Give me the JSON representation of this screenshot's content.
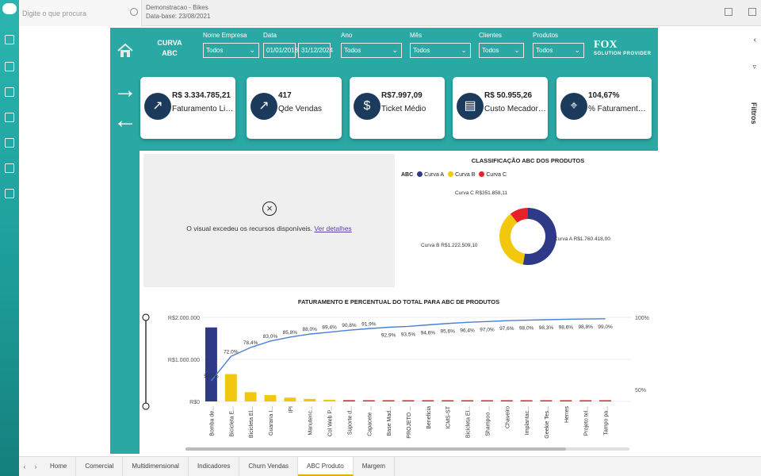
{
  "app": {
    "search_placeholder": "Digite o que procura",
    "doc_title": "Demonstracao - Bikes",
    "doc_date": "Data-base: 23/08/2021",
    "filters_label": "Filtros"
  },
  "header": {
    "title_line1": "CURVA",
    "title_line2": "ABC",
    "brand": "FOX",
    "brand_sub1": "SOLUTION",
    "brand_sub2": "PROVIDER",
    "filters": {
      "empresa": {
        "label": "Nome Empresa",
        "value": "Todos"
      },
      "data": {
        "label": "Data",
        "start": "01/01/2018",
        "end": "31/12/2024"
      },
      "ano": {
        "label": "Ano",
        "value": "Todos"
      },
      "mes": {
        "label": "Mês",
        "value": "Todos"
      },
      "clientes": {
        "label": "Clientes",
        "value": "Todos"
      },
      "produtos": {
        "label": "Produtos",
        "value": "Todos"
      }
    }
  },
  "kpis": [
    {
      "value": "R$ 3.334.785,21",
      "label": "Faturamento Liquido",
      "icon": "chart-icon"
    },
    {
      "value": "417",
      "label": "Qde Vendas",
      "icon": "chart-icon"
    },
    {
      "value": "R$7.997,09",
      "label": "Ticket Médio",
      "icon": "dollar-icon"
    },
    {
      "value": "R$ 50.955,26",
      "label": "Custo Mecadoria...",
      "icon": "clipboard-icon"
    },
    {
      "value": "104,67%",
      "label": "% Faturamento C...",
      "icon": "location-icon"
    }
  ],
  "error_visual": {
    "message": "O visual excedeu os recursos disponíveis.",
    "link": "Ver detalhes"
  },
  "colors": {
    "curva_a": "#2e3a87",
    "curva_b": "#f2c80f",
    "curva_c": "#e8202a",
    "teal": "#2aa8a4",
    "line": "#4a7fd4"
  },
  "chart_data": [
    {
      "type": "pie",
      "title": "CLASSIFICAÇÃO ABC DOS PRODUTOS",
      "legend_title": "ABC",
      "categories": [
        "Curva A",
        "Curva B",
        "Curva C"
      ],
      "values": [
        1760418.0,
        1222509.1,
        351858.11
      ],
      "data_labels": [
        "Curva A R$1.760.418,00",
        "Curva B R$1.222.509,10",
        "Curva C R$351.858,11"
      ]
    },
    {
      "type": "bar",
      "title": "FATURAMENTO E PERCENTUAL DO TOTAL  PARA ABC DE PRODUTOS",
      "y_ticks": [
        "R$2.000.000",
        "R$1.000.000",
        "R$0"
      ],
      "y2_ticks": [
        "100%",
        "50%"
      ],
      "ylim": [
        0,
        2000000
      ],
      "categories": [
        "Bomba de...",
        "Bicicleta E...",
        "Bicicleta El...",
        "Guarana I...",
        "IPI",
        "Manutenc...",
        "Col Web P...",
        "Suporte d...",
        "Capacete ...",
        "Base Mad...",
        "PROJETO ...",
        "Beneficia",
        "ICMS-ST",
        "Bicicleta El...",
        "Shampoo ...",
        "Chaveiro",
        "Implantac...",
        "Geekie Tes...",
        "Herres",
        "Projeto tel...",
        "Tampo pa..."
      ],
      "values": [
        1760000,
        650000,
        220000,
        150000,
        90000,
        60000,
        40000,
        30000,
        25000,
        22000,
        20000,
        18000,
        16000,
        14000,
        12000,
        10000,
        9000,
        8000,
        7000,
        6000,
        5000
      ],
      "curva": [
        "A",
        "B",
        "B",
        "B",
        "B",
        "B",
        "B",
        "C",
        "C",
        "C",
        "C",
        "C",
        "C",
        "C",
        "C",
        "C",
        "C",
        "C",
        "C",
        "C",
        "C"
      ],
      "cumulative_pct": [
        54.5,
        72.0,
        78.4,
        83.0,
        85.8,
        88.0,
        89.4,
        90.8,
        91.9,
        92.9,
        93.5,
        94.6,
        95.6,
        96.4,
        97.0,
        97.6,
        98.0,
        98.3,
        98.6,
        98.8,
        99.0
      ],
      "pct_labels": [
        "54,5%",
        "72,0%",
        "78,4%",
        "83,0%",
        "85,8%",
        "88,0%",
        "89,4%",
        "90,8%",
        "91,9%",
        "92,9%",
        "93,5%",
        "94,6%",
        "95,6%",
        "96,4%",
        "97,0%",
        "97,6%",
        "98,0%",
        "98,3%",
        "98,6%",
        "98,8%",
        "99,0%"
      ]
    }
  ],
  "tabs": [
    "Home",
    "Comercial",
    "Multidimensional",
    "Indicadores",
    "Churn Vendas",
    "ABC Produto",
    "Margem"
  ],
  "active_tab": "ABC Produto"
}
